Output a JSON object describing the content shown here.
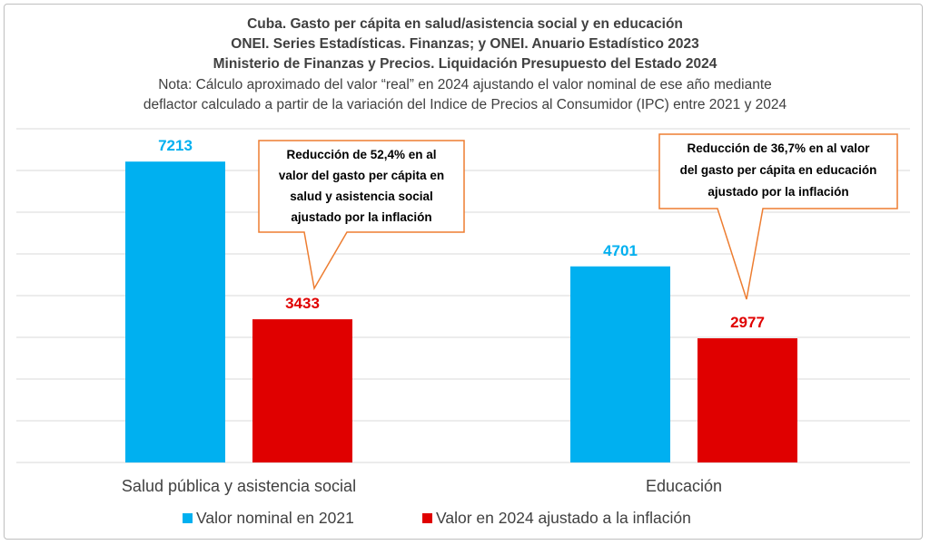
{
  "chart_data": {
    "type": "bar",
    "title_lines": [
      "Cuba. Gasto per cápita en salud/asistencia social y en educación",
      "ONEI. Series Estadísticas. Finanzas; y ONEI. Anuario Estadístico 2023",
      "Ministerio de Finanzas y Precios. Liquidación Presupuesto del Estado 2024"
    ],
    "note_lines": [
      "Nota: Cálculo aproximado del valor “real” en 2024 ajustando el valor nominal de ese año mediante",
      "deflactor calculado a partir de la variación del  Indice de Precios al Consumidor (IPC) entre 2021 y 2024"
    ],
    "categories": [
      "Salud pública y asistencia social",
      "Educación"
    ],
    "series": [
      {
        "name": "Valor nominal en 2021",
        "color": "#00b0f0",
        "values": [
          7213,
          4701
        ],
        "labels": [
          "7213",
          "4701"
        ]
      },
      {
        "name": "Valor en 2024 ajustado a la inflación",
        "color": "#e00000",
        "values": [
          3433,
          2977
        ],
        "labels": [
          "3433",
          "2977"
        ]
      }
    ],
    "ylim": [
      0,
      8000
    ],
    "grid": true,
    "legend_position": "bottom",
    "annotations": [
      {
        "lines": [
          "Reducción de 52,4% en al",
          "valor del gasto per cápita en",
          "salud y asistencia social",
          "ajustado por la inflación"
        ],
        "border_color": "#ed7d31"
      },
      {
        "lines": [
          "Reducción de 36,7% en al valor",
          "del gasto per cápita en educación",
          "ajustado por la inflación"
        ],
        "border_color": "#ed7d31"
      }
    ]
  }
}
